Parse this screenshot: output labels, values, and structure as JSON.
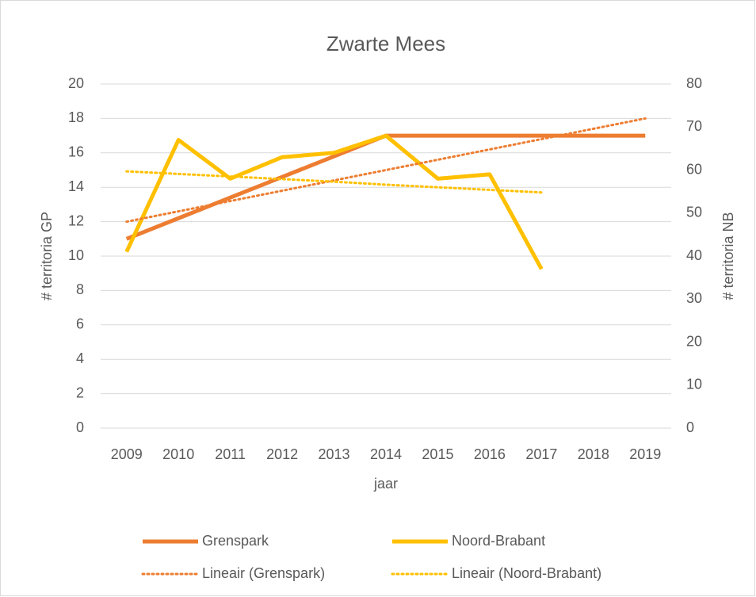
{
  "chart_data": {
    "type": "line",
    "title": "Zwarte Mees",
    "x_label": "jaar",
    "y_label": "# territoria GP",
    "y2_label": "# territoria NB",
    "categories": [
      "2009",
      "2010",
      "2011",
      "2012",
      "2013",
      "2014",
      "2015",
      "2016",
      "2017",
      "2018",
      "2019"
    ],
    "series": [
      {
        "name": "Grenspark",
        "color": "#ED7D31",
        "style": "solid",
        "axis": "y",
        "values": [
          11,
          12.2,
          13.4,
          14.6,
          15.8,
          17,
          17,
          17,
          17,
          17,
          17
        ]
      },
      {
        "name": "Noord-Brabant",
        "color": "#FFC000",
        "style": "solid",
        "axis": "y2",
        "values": [
          41,
          67,
          58,
          63,
          64,
          68,
          58,
          59,
          37,
          null,
          null
        ]
      },
      {
        "name": "Lineair (Grenspark)",
        "color": "#ED7D31",
        "style": "dotted",
        "axis": "y",
        "values": [
          12,
          12.6,
          13.2,
          13.8,
          14.4,
          15,
          15.6,
          16.2,
          16.8,
          17.4,
          18
        ]
      },
      {
        "name": "Lineair (Noord-Brabant)",
        "color": "#FFC000",
        "style": "dotted",
        "axis": "y2",
        "values": [
          59.7,
          59.1,
          58.5,
          57.9,
          57.3,
          56.6,
          56.0,
          55.4,
          54.8,
          null,
          null
        ]
      }
    ],
    "ylim": [
      0,
      20
    ],
    "yticks": [
      0,
      2,
      4,
      6,
      8,
      10,
      12,
      14,
      16,
      18,
      20
    ],
    "y2lim": [
      0,
      80
    ],
    "y2ticks": [
      0,
      10,
      20,
      30,
      40,
      50,
      60,
      70,
      80
    ],
    "grid": true,
    "legend": "bottom"
  }
}
